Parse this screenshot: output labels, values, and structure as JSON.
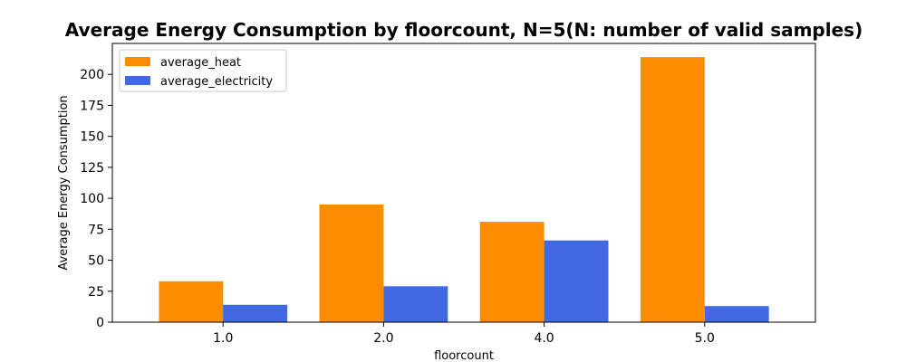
{
  "chart_data": {
    "type": "bar",
    "title": "Average Energy Consumption by floorcount, N=5(N: number of valid samples)",
    "xlabel": "floorcount",
    "ylabel": "Average Energy Consumption",
    "categories": [
      "1.0",
      "2.0",
      "4.0",
      "5.0"
    ],
    "series": [
      {
        "name": "average_heat",
        "color": "#ff8c00",
        "values": [
          33,
          95,
          81,
          214
        ]
      },
      {
        "name": "average_electricity",
        "color": "#4169e1",
        "values": [
          14,
          29,
          66,
          13
        ]
      }
    ],
    "ylim": [
      0,
      225
    ],
    "yticks": [
      0,
      25,
      50,
      75,
      100,
      125,
      150,
      175,
      200
    ],
    "grid": false,
    "legend": "top-left"
  }
}
